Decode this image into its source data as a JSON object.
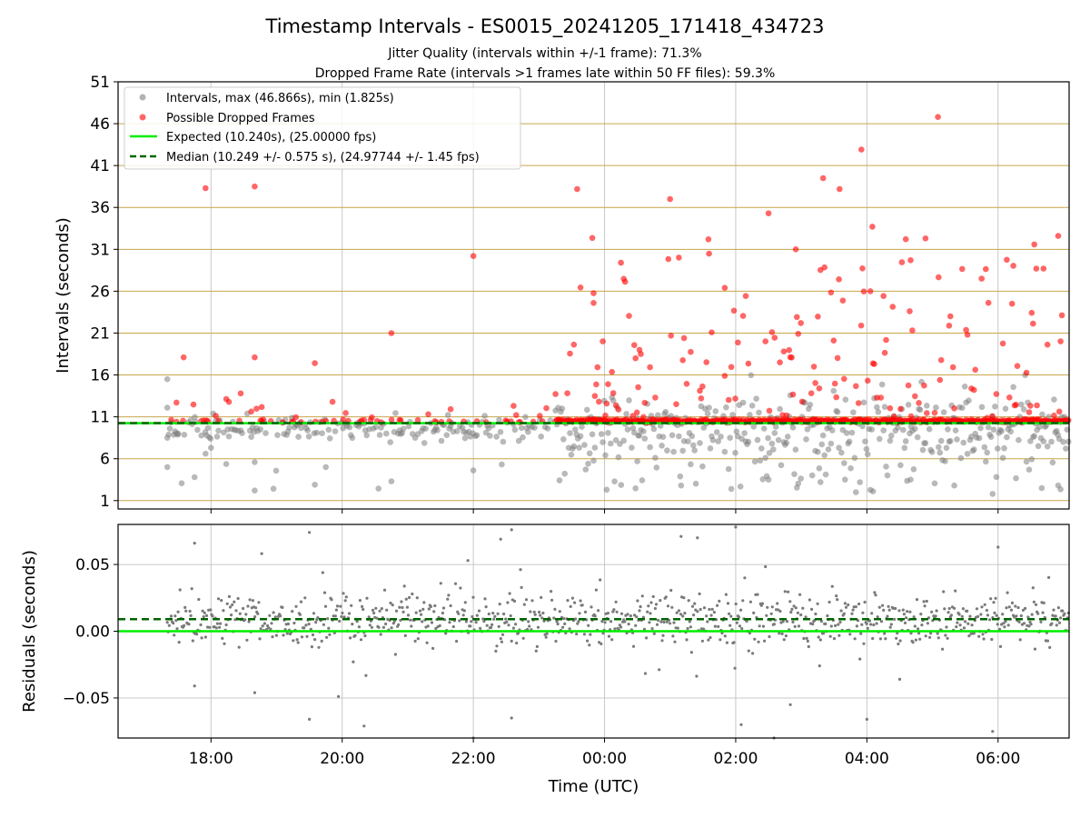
{
  "figure": {
    "title": "Timestamp Intervals - ES0015_20241205_171418_434723",
    "subtitle_1": "Jitter Quality (intervals within +/-1 frame): 71.3%",
    "subtitle_2": "Dropped Frame Rate (intervals >1 frames late within 50 FF files): 59.3%"
  },
  "colors": {
    "intervals": "#808080",
    "dropped": "#ff0000",
    "expected": "#00ee00",
    "median": "#006400",
    "hgrid": "#c8a64b",
    "vgrid": "#c8c8c8",
    "residuals": "#7a7a7a"
  },
  "chart_data": [
    {
      "type": "scatter",
      "ylabel": "Intervals (seconds)",
      "ylim": [
        0,
        51
      ],
      "yticks": [
        "1",
        "6",
        "11",
        "16",
        "21",
        "26",
        "31",
        "36",
        "41",
        "46",
        "51"
      ],
      "xlim": [
        "16:35",
        "07:05"
      ],
      "grid": true,
      "legend_position": "top-left",
      "legend": [
        "Intervals, max (46.866s), min (1.825s)",
        "Possible Dropped Frames",
        "Expected (10.240s), (25.00000 fps)",
        "Median (10.249 +/- 0.575 s), (24.97744 +/- 1.45 fps)"
      ],
      "expected_interval": 10.24,
      "median_interval": 10.249,
      "series": [
        {
          "name": "Intervals, max (46.866s), min (1.825s)",
          "summary": {
            "max": 46.866,
            "min": 1.825
          },
          "points_sample": [
            [
              "17:20",
              15.5
            ],
            [
              "17:20",
              12.1
            ],
            [
              "17:20",
              8.5
            ],
            [
              "17:20",
              5.0
            ],
            [
              "17:30",
              9.0
            ],
            [
              "17:45",
              3.8
            ],
            [
              "17:55",
              6.6
            ],
            [
              "18:00",
              7.3
            ],
            [
              "18:40",
              2.2
            ],
            [
              "18:40",
              5.6
            ],
            [
              "19:35",
              2.9
            ],
            [
              "19:45",
              5.0
            ],
            [
              "20:45",
              3.3
            ],
            [
              "22:00",
              4.6
            ],
            [
              "23:45",
              5.4
            ],
            [
              "00:30",
              5.7
            ],
            [
              "01:10",
              2.8
            ],
            [
              "02:30",
              3.5
            ],
            [
              "03:10",
              4.0
            ],
            [
              "03:40",
              3.5
            ],
            [
              "04:40",
              3.5
            ],
            [
              "05:20",
              2.8
            ],
            [
              "05:55",
              1.8
            ],
            [
              "06:40",
              2.5
            ],
            [
              "06:55",
              2.8
            ]
          ]
        },
        {
          "name": "Possible Dropped Frames",
          "points_sample": [
            [
              "17:35",
              18.1
            ],
            [
              "17:55",
              38.3
            ],
            [
              "18:40",
              38.5
            ],
            [
              "18:40",
              18.1
            ],
            [
              "19:35",
              17.4
            ],
            [
              "20:45",
              21.0
            ],
            [
              "22:00",
              30.2
            ],
            [
              "23:35",
              38.2
            ],
            [
              "23:50",
              24.6
            ],
            [
              "00:15",
              29.4
            ],
            [
              "01:00",
              37.0
            ],
            [
              "01:35",
              32.2
            ],
            [
              "01:50",
              26.4
            ],
            [
              "02:30",
              35.3
            ],
            [
              "02:55",
              31.0
            ],
            [
              "03:20",
              39.5
            ],
            [
              "03:35",
              38.2
            ],
            [
              "03:55",
              42.9
            ],
            [
              "04:05",
              33.7
            ],
            [
              "04:40",
              29.7
            ],
            [
              "05:05",
              46.8
            ],
            [
              "05:45",
              27.5
            ],
            [
              "06:35",
              28.7
            ],
            [
              "06:55",
              32.6
            ]
          ]
        }
      ],
      "xticks": [
        "18:00",
        "20:00",
        "22:00",
        "00:00",
        "02:00",
        "04:00",
        "06:00"
      ]
    },
    {
      "type": "scatter",
      "ylabel": "Residuals (seconds)",
      "xlabel": "Time (UTC)",
      "ylim": [
        -0.08,
        0.08
      ],
      "yticks": [
        "−0.05",
        "0.00",
        "0.05"
      ],
      "xticks": [
        "18:00",
        "20:00",
        "22:00",
        "00:00",
        "02:00",
        "04:00",
        "06:00"
      ],
      "xlim": [
        "16:35",
        "07:05"
      ],
      "grid": true,
      "expected_residual": 0.0,
      "median_residual": 0.009,
      "series": [
        {
          "name": "Residuals",
          "summary": {
            "center": 0.008,
            "spread": 0.01,
            "max": 0.078,
            "min": -0.08
          },
          "points_sample": [
            [
              "17:45",
              0.066
            ],
            [
              "17:45",
              -0.041
            ],
            [
              "18:40",
              -0.046
            ],
            [
              "19:30",
              0.074
            ],
            [
              "19:30",
              -0.066
            ],
            [
              "20:20",
              -0.071
            ],
            [
              "21:55",
              0.053
            ],
            [
              "22:00",
              -0.08
            ],
            [
              "22:35",
              0.076
            ],
            [
              "22:25",
              0.069
            ],
            [
              "22:35",
              -0.065
            ],
            [
              "01:10",
              0.071
            ],
            [
              "01:25",
              0.07
            ],
            [
              "02:00",
              0.078
            ],
            [
              "02:05",
              -0.07
            ],
            [
              "02:35",
              -0.08
            ],
            [
              "02:50",
              -0.055
            ],
            [
              "04:00",
              -0.066
            ],
            [
              "04:30",
              -0.036
            ],
            [
              "05:55",
              -0.075
            ],
            [
              "06:00",
              0.063
            ]
          ]
        }
      ]
    }
  ]
}
